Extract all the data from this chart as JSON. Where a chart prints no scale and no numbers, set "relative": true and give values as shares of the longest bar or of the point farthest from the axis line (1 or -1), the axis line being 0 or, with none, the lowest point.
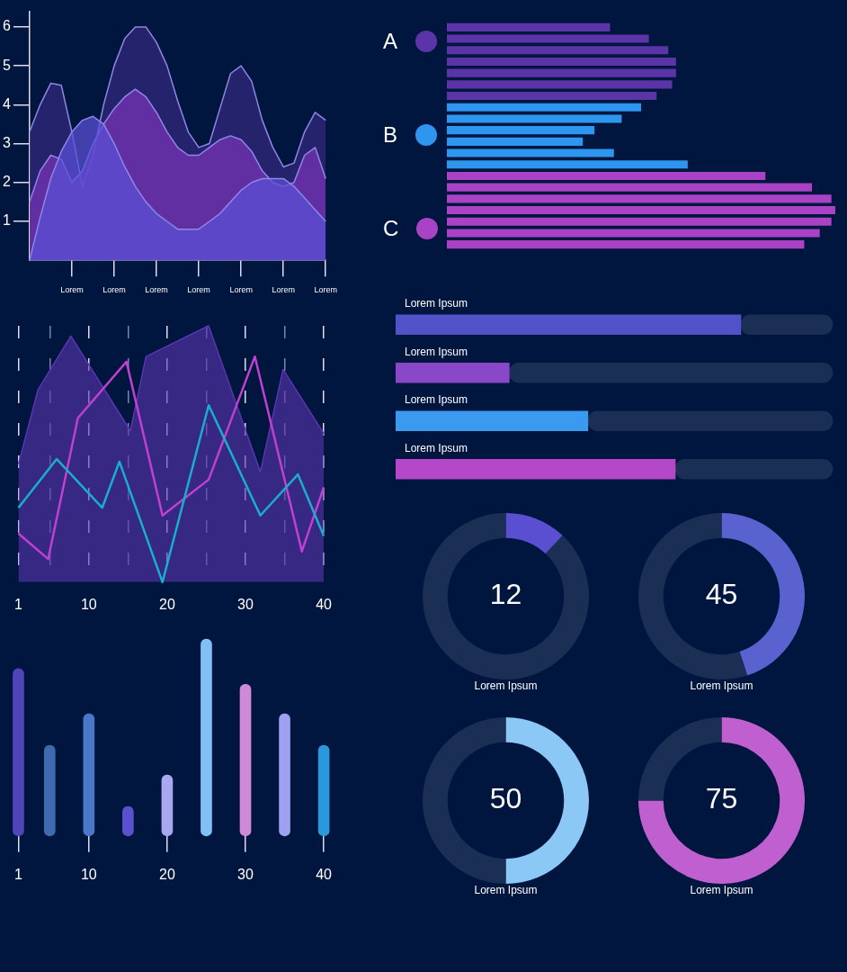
{
  "chart_data": [
    {
      "type": "area",
      "categories": [
        null,
        null,
        null,
        null,
        "Lorem",
        null,
        null,
        null,
        "Lorem",
        null,
        null,
        null,
        "Lorem",
        null,
        null,
        null,
        "Lorem",
        null,
        null,
        null,
        "Lorem",
        null,
        null,
        null,
        "Lorem",
        null,
        null,
        null,
        "Lorem"
      ],
      "ylim": [
        0,
        6.4
      ],
      "yticks": [
        1,
        2,
        3,
        4,
        5,
        6
      ],
      "series": [
        {
          "color": "#33287e",
          "values": [
            3.3,
            4.0,
            4.55,
            4.5,
            3.3,
            1.9,
            2.7,
            4.0,
            5.0,
            5.7,
            6.0,
            6.0,
            5.6,
            5.0,
            4.1,
            3.3,
            2.9,
            3.0,
            3.9,
            4.8,
            5.0,
            4.6,
            3.6,
            2.9,
            2.4,
            2.5,
            3.3,
            3.8,
            3.6
          ]
        },
        {
          "color": "#7a35b8",
          "values": [
            1.5,
            2.3,
            2.7,
            2.6,
            2.0,
            2.3,
            3.0,
            3.5,
            3.9,
            4.2,
            4.4,
            4.2,
            3.8,
            3.3,
            2.9,
            2.7,
            2.7,
            2.9,
            3.1,
            3.2,
            3.1,
            2.8,
            2.3,
            2.0,
            1.9,
            2.0,
            2.7,
            2.9,
            2.1
          ]
        },
        {
          "color": "#5a50d8",
          "values": [
            0,
            1.1,
            2.1,
            2.8,
            3.3,
            3.6,
            3.7,
            3.5,
            3.0,
            2.4,
            1.9,
            1.5,
            1.2,
            1.0,
            0.8,
            0.8,
            0.8,
            1.0,
            1.2,
            1.5,
            1.8,
            2.0,
            2.1,
            2.1,
            2.1,
            1.9,
            1.6,
            1.3,
            1.0
          ]
        }
      ]
    },
    {
      "type": "bar",
      "orientation": "horizontal",
      "relative": true,
      "stacked": true,
      "legend": "left",
      "categories": [
        null,
        null,
        null,
        null,
        null,
        null,
        null,
        null,
        null,
        null,
        null,
        null,
        null,
        null,
        null,
        null,
        null,
        null,
        null,
        null
      ],
      "series": [
        {
          "name": "A",
          "color": "#5b35a8",
          "values": [
            0.42,
            0.52,
            0.57,
            0.59,
            0.59,
            0.58,
            0.54,
            null,
            null,
            null,
            null,
            null,
            null,
            null,
            null,
            null,
            null,
            null,
            null,
            null
          ]
        },
        {
          "name": "B",
          "color": "#2e96ee",
          "values": [
            null,
            null,
            null,
            null,
            null,
            null,
            null,
            0.5,
            0.45,
            0.38,
            0.35,
            0.43,
            0.62,
            null,
            null,
            null,
            null,
            null,
            null,
            null
          ]
        },
        {
          "name": "C",
          "color": "#a942c4",
          "values": [
            null,
            null,
            null,
            null,
            null,
            null,
            null,
            null,
            null,
            null,
            null,
            null,
            null,
            0.82,
            0.94,
            0.99,
            1,
            0.99,
            0.96,
            0.92
          ]
        }
      ]
    },
    {
      "type": "line",
      "relative": true,
      "grid": "x",
      "xlim": [
        1,
        40
      ],
      "xticks": [
        1,
        {
          "value": 5,
          "label": null
        },
        10,
        {
          "value": 15,
          "label": null
        },
        20,
        {
          "value": 25,
          "label": null
        },
        30,
        {
          "value": 35,
          "label": null
        },
        40
      ],
      "series": [
        {
          "type": "area",
          "color": "#5a35b0",
          "x": [
            1,
            3.5,
            7.7,
            15.3,
            17.3,
            25.3,
            31.9,
            34.8,
            40
          ],
          "values": [
            0.46,
            0.75,
            0.96,
            0.59,
            0.88,
            1,
            0.43,
            0.83,
            0.58
          ]
        },
        {
          "color": "#c040d0",
          "x": [
            1,
            4.8,
            8.6,
            14.8,
            19.4,
            25.3,
            31.2,
            37.2,
            40
          ],
          "values": [
            0.19,
            0.09,
            0.64,
            0.86,
            0.26,
            0.4,
            0.88,
            0.12,
            0.37
          ]
        },
        {
          "color": "#18b0c8",
          "x": [
            1,
            5.9,
            11.7,
            13.9,
            19.4,
            25.3,
            31.9,
            36.7,
            40
          ],
          "values": [
            0.29,
            0.48,
            0.29,
            0.47,
            0,
            0.69,
            0.26,
            0.42,
            0.18
          ]
        }
      ]
    },
    {
      "type": "bar",
      "orientation": "horizontal",
      "relative": true,
      "stacked": true,
      "categories": [
        "Lorem Ipsum",
        "Lorem Ipsum",
        "Lorem Ipsum",
        "Lorem Ipsum"
      ],
      "series": [
        {
          "colors": [
            "#5252c8",
            "#8a48c8",
            "#3a9af0",
            "#b548c8"
          ],
          "values": [
            0.79,
            0.26,
            0.44,
            0.64
          ]
        },
        {
          "color": "#1b2f55",
          "values": [
            0.21,
            0.74,
            0.56,
            0.36
          ]
        }
      ]
    },
    {
      "type": "donut",
      "categories": [
        null,
        null
      ],
      "values": [
        12,
        88
      ],
      "colors": [
        "#5a4fd0",
        "#1b2f55"
      ],
      "value_labels": [
        "12",
        null
      ],
      "annotations": [
        "Lorem Ipsum"
      ]
    },
    {
      "type": "donut",
      "categories": [
        null,
        null
      ],
      "values": [
        45,
        55
      ],
      "colors": [
        "#5a62d0",
        "#1b2f55"
      ],
      "value_labels": [
        "45",
        null
      ],
      "annotations": [
        "Lorem Ipsum"
      ]
    },
    {
      "type": "bar",
      "relative": true,
      "x": [
        1,
        5,
        10,
        15,
        20,
        25,
        30,
        35,
        40
      ],
      "xlim": [
        1,
        40
      ],
      "xticks": [
        1,
        10,
        20,
        30,
        40
      ],
      "values": [
        0.85,
        0.46,
        0.62,
        0.15,
        0.31,
        1,
        0.77,
        0.62,
        0.46
      ],
      "colors": [
        "#4f44b8",
        "#3f6ab0",
        "#4a78c8",
        "#5a50d0",
        "#a8a8f0",
        "#80c0f4",
        "#d088d8",
        "#a0a0f0",
        "#2b98dc"
      ]
    },
    {
      "type": "donut",
      "categories": [
        null,
        null
      ],
      "values": [
        50,
        50
      ],
      "colors": [
        "#8cc8f6",
        "#1b2f55"
      ],
      "value_labels": [
        "50",
        null
      ],
      "annotations": [
        "Lorem Ipsum"
      ]
    },
    {
      "type": "donut",
      "categories": [
        null,
        null
      ],
      "values": [
        75,
        25
      ],
      "colors": [
        "#c060d0",
        "#1b2f55"
      ],
      "value_labels": [
        "75",
        null
      ],
      "annotations": [
        "Lorem Ipsum"
      ]
    }
  ]
}
